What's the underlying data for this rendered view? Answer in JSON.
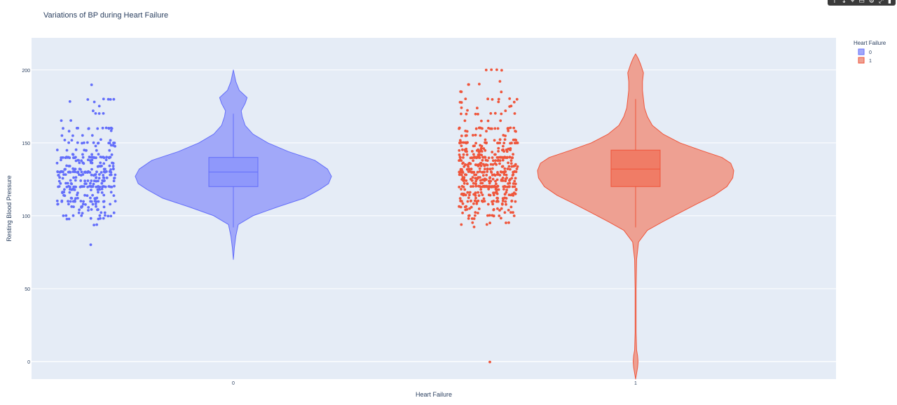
{
  "modebar": {
    "buttons": [
      {
        "icon": "pan-up-icon",
        "glyph": "↑"
      },
      {
        "icon": "download-icon",
        "glyph": "↓"
      },
      {
        "icon": "zoom-icon",
        "glyph": "⌖"
      },
      {
        "icon": "box-select-icon",
        "glyph": "▭"
      },
      {
        "icon": "settings-icon",
        "glyph": "⚙"
      },
      {
        "icon": "autoscale-icon",
        "glyph": "⤢"
      },
      {
        "icon": "plotly-logo-icon",
        "glyph": "▮"
      }
    ]
  },
  "chart_data": {
    "type": "violin",
    "title": "Variations of BP during Heart Failure",
    "xlabel": "Heart Failure",
    "ylabel": "Resting Blood Pressure",
    "categories": [
      "0",
      "1"
    ],
    "ylim": [
      -12,
      222
    ],
    "yticks": [
      0,
      50,
      100,
      150,
      200
    ],
    "grid": true,
    "legend": {
      "title": "Heart Failure",
      "placement": "top-right",
      "entries": [
        "0",
        "1"
      ]
    },
    "colors": {
      "plot_bg": "#e5ecf6",
      "grid": "#ffffff",
      "series": [
        "#636efa",
        "#ef553b"
      ],
      "fill": [
        "#a1a8f9",
        "#eea092"
      ],
      "box_fill": [
        "#8f98fb",
        "#f07c66"
      ]
    },
    "series": [
      {
        "name": "0",
        "box": {
          "q1": 120,
          "median": 130,
          "q3": 140,
          "lower_fence": 92,
          "upper_fence": 170
        },
        "violin_range": [
          70,
          200
        ],
        "density": [
          [
            70,
            0
          ],
          [
            78,
            0.01
          ],
          [
            86,
            0.025
          ],
          [
            94,
            0.05
          ],
          [
            100,
            0.2
          ],
          [
            106,
            0.45
          ],
          [
            112,
            0.72
          ],
          [
            118,
            0.88
          ],
          [
            122,
            0.97
          ],
          [
            127,
            1.0
          ],
          [
            132,
            0.96
          ],
          [
            138,
            0.83
          ],
          [
            144,
            0.56
          ],
          [
            150,
            0.35
          ],
          [
            156,
            0.2
          ],
          [
            162,
            0.12
          ],
          [
            168,
            0.09
          ],
          [
            172,
            0.08
          ],
          [
            177,
            0.12
          ],
          [
            181,
            0.14
          ],
          [
            186,
            0.06
          ],
          [
            192,
            0.025
          ],
          [
            200,
            0
          ]
        ],
        "points": [
          {
            "value": 80,
            "count": 1
          },
          {
            "value": 94,
            "count": 2
          },
          {
            "value": 98,
            "count": 6
          },
          {
            "value": 100,
            "count": 8
          },
          {
            "value": 102,
            "count": 5
          },
          {
            "value": 104,
            "count": 6
          },
          {
            "value": 106,
            "count": 8
          },
          {
            "value": 108,
            "count": 8
          },
          {
            "value": 110,
            "count": 18
          },
          {
            "value": 112,
            "count": 10
          },
          {
            "value": 114,
            "count": 8
          },
          {
            "value": 116,
            "count": 8
          },
          {
            "value": 118,
            "count": 10
          },
          {
            "value": 120,
            "count": 32
          },
          {
            "value": 122,
            "count": 10
          },
          {
            "value": 124,
            "count": 14
          },
          {
            "value": 126,
            "count": 12
          },
          {
            "value": 128,
            "count": 16
          },
          {
            "value": 130,
            "count": 30
          },
          {
            "value": 132,
            "count": 14
          },
          {
            "value": 134,
            "count": 10
          },
          {
            "value": 136,
            "count": 10
          },
          {
            "value": 138,
            "count": 10
          },
          {
            "value": 140,
            "count": 26
          },
          {
            "value": 142,
            "count": 6
          },
          {
            "value": 145,
            "count": 8
          },
          {
            "value": 148,
            "count": 4
          },
          {
            "value": 150,
            "count": 12
          },
          {
            "value": 152,
            "count": 4
          },
          {
            "value": 155,
            "count": 4
          },
          {
            "value": 158,
            "count": 2
          },
          {
            "value": 160,
            "count": 12
          },
          {
            "value": 165,
            "count": 2
          },
          {
            "value": 170,
            "count": 3
          },
          {
            "value": 172,
            "count": 1
          },
          {
            "value": 175,
            "count": 1
          },
          {
            "value": 178,
            "count": 2
          },
          {
            "value": 180,
            "count": 5
          },
          {
            "value": 190,
            "count": 1
          }
        ]
      },
      {
        "name": "1",
        "box": {
          "q1": 120,
          "median": 132,
          "q3": 145,
          "lower_fence": 92,
          "upper_fence": 180
        },
        "violin_range": [
          -12,
          211
        ],
        "density": [
          [
            -12,
            0
          ],
          [
            -8,
            0.01
          ],
          [
            -4,
            0.02
          ],
          [
            0,
            0.025
          ],
          [
            4,
            0.02
          ],
          [
            8,
            0.01
          ],
          [
            20,
            0.005
          ],
          [
            50,
            0.005
          ],
          [
            70,
            0.01
          ],
          [
            82,
            0.03
          ],
          [
            90,
            0.12
          ],
          [
            96,
            0.28
          ],
          [
            102,
            0.45
          ],
          [
            108,
            0.62
          ],
          [
            114,
            0.8
          ],
          [
            120,
            0.93
          ],
          [
            126,
            0.99
          ],
          [
            131,
            1.0
          ],
          [
            136,
            0.97
          ],
          [
            140,
            0.88
          ],
          [
            145,
            0.66
          ],
          [
            150,
            0.45
          ],
          [
            156,
            0.28
          ],
          [
            162,
            0.17
          ],
          [
            168,
            0.12
          ],
          [
            174,
            0.09
          ],
          [
            180,
            0.08
          ],
          [
            186,
            0.07
          ],
          [
            192,
            0.07
          ],
          [
            198,
            0.08
          ],
          [
            204,
            0.05
          ],
          [
            208,
            0.025
          ],
          [
            211,
            0
          ]
        ],
        "points": [
          {
            "value": 0,
            "count": 1
          },
          {
            "value": 92,
            "count": 1
          },
          {
            "value": 94,
            "count": 2
          },
          {
            "value": 95,
            "count": 4
          },
          {
            "value": 98,
            "count": 4
          },
          {
            "value": 100,
            "count": 10
          },
          {
            "value": 102,
            "count": 6
          },
          {
            "value": 104,
            "count": 6
          },
          {
            "value": 105,
            "count": 4
          },
          {
            "value": 106,
            "count": 6
          },
          {
            "value": 108,
            "count": 8
          },
          {
            "value": 110,
            "count": 24
          },
          {
            "value": 112,
            "count": 10
          },
          {
            "value": 114,
            "count": 12
          },
          {
            "value": 115,
            "count": 10
          },
          {
            "value": 116,
            "count": 10
          },
          {
            "value": 118,
            "count": 12
          },
          {
            "value": 120,
            "count": 40
          },
          {
            "value": 122,
            "count": 12
          },
          {
            "value": 124,
            "count": 16
          },
          {
            "value": 125,
            "count": 14
          },
          {
            "value": 126,
            "count": 16
          },
          {
            "value": 128,
            "count": 18
          },
          {
            "value": 130,
            "count": 36
          },
          {
            "value": 132,
            "count": 16
          },
          {
            "value": 134,
            "count": 12
          },
          {
            "value": 135,
            "count": 14
          },
          {
            "value": 136,
            "count": 12
          },
          {
            "value": 138,
            "count": 14
          },
          {
            "value": 140,
            "count": 40
          },
          {
            "value": 142,
            "count": 10
          },
          {
            "value": 144,
            "count": 10
          },
          {
            "value": 145,
            "count": 12
          },
          {
            "value": 146,
            "count": 6
          },
          {
            "value": 148,
            "count": 6
          },
          {
            "value": 150,
            "count": 24
          },
          {
            "value": 152,
            "count": 8
          },
          {
            "value": 155,
            "count": 8
          },
          {
            "value": 158,
            "count": 6
          },
          {
            "value": 160,
            "count": 18
          },
          {
            "value": 165,
            "count": 4
          },
          {
            "value": 170,
            "count": 8
          },
          {
            "value": 172,
            "count": 2
          },
          {
            "value": 174,
            "count": 2
          },
          {
            "value": 175,
            "count": 2
          },
          {
            "value": 178,
            "count": 4
          },
          {
            "value": 180,
            "count": 6
          },
          {
            "value": 185,
            "count": 3
          },
          {
            "value": 190,
            "count": 3
          },
          {
            "value": 192,
            "count": 1
          },
          {
            "value": 200,
            "count": 4
          }
        ]
      }
    ]
  }
}
